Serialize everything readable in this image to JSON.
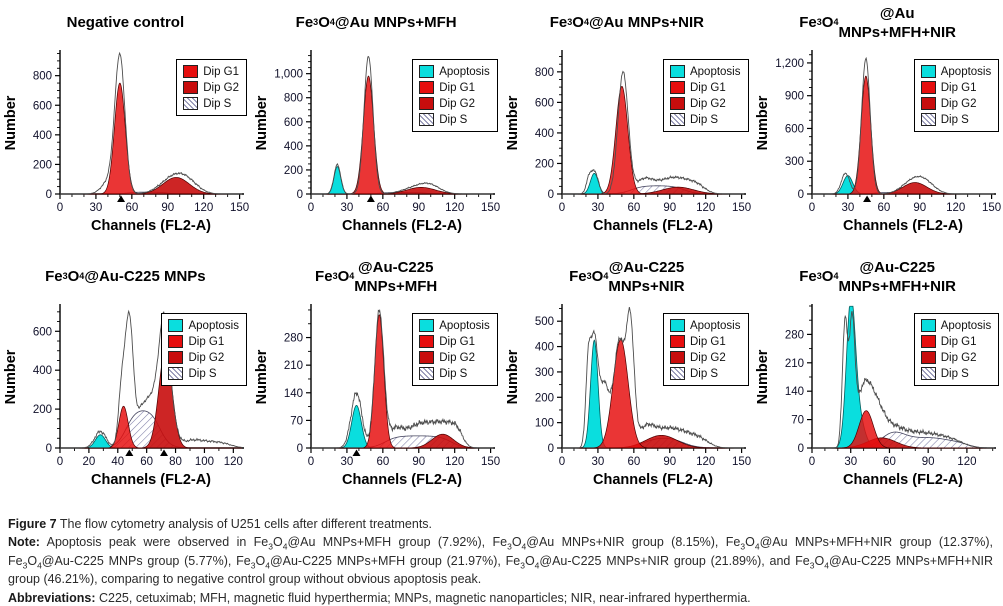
{
  "page": {
    "background": "#ffffff"
  },
  "colors": {
    "apoptosis": "#0adede",
    "dip_g1": "#e60e0e",
    "dip_g2": "#c80d0d",
    "s_hatch_line": "#8080a8",
    "raw_curve": "#4d4d4d",
    "axis": "#000000",
    "tick_text": "#10102a"
  },
  "legend_swatches": {
    "Apoptosis": "apoptosis",
    "Dip G1": "g1",
    "Dip G2": "g2",
    "Dip S": "s"
  },
  "caption": {
    "items": [
      {
        "label": "Figure 7",
        "text": " The flow cytometry analysis of U251 cells after different treatments."
      },
      {
        "label": "Note:",
        "text": " Apoptosis peak were observed in Fe~3~O~4~@Au MNPs+MFH group (7.92%), Fe~3~O~4~@Au MNPs+NIR group (8.15%), Fe~3~O~4~@Au MNPs+MFH+NIR group (12.37%), Fe~3~O~4~@Au-C225 MNPs group (5.77%), Fe~3~O~4~@Au-C225 MNPs+MFH group (21.97%), Fe~3~O~4~@Au-C225 MNPs+NIR group (21.89%), and Fe~3~O~4~@Au-C225 MNPs+MFH+NIR group (46.21%), comparing to negative control group without obvious apoptosis peak."
      },
      {
        "label": "Abbreviations:",
        "text": " C225, cetuximab; MFH, magnetic fluid hyperthermia; MNPs, magnetic nanoparticles; NIR, near-infrared hyperthermia."
      }
    ]
  },
  "chart_data": [
    {
      "type": "area",
      "name": "negative-control",
      "title_lines": [
        "Negative control"
      ],
      "xlabel": "Channels (FL2-A)",
      "ylabel": "Number",
      "xlim": [
        0,
        152
      ],
      "xticks": [
        0,
        30,
        60,
        90,
        120,
        150
      ],
      "x_minor_step": 10,
      "ylim": [
        0,
        960
      ],
      "yticks": [
        0,
        200,
        400,
        600,
        800
      ],
      "y_minor_div": 4,
      "legend": [
        "Dip G1",
        "Dip G2",
        "Dip S"
      ],
      "axis_markers": [
        51
      ],
      "series": {
        "raw": {
          "peaks": [
            [
              50,
              920,
              4.2
            ],
            [
              41,
              85,
              6
            ],
            [
              95,
              110,
              11
            ],
            [
              107,
              55,
              9
            ]
          ],
          "noise": 5
        },
        "g1": {
          "peaks": [
            [
              50,
              750,
              4.5
            ]
          ]
        },
        "g2": {
          "peaks": [
            [
              97,
              112,
              11
            ]
          ]
        },
        "s": {
          "plateau": [
            56,
            90,
            13,
            4
          ]
        }
      }
    },
    {
      "type": "area",
      "name": "fe3o4-au-mnps-mfh",
      "title_lines": [
        "Fe~3~O~4~@Au MNPs+MFH"
      ],
      "xlabel": "Channels (FL2-A)",
      "ylabel": "Number",
      "xlim": [
        0,
        152
      ],
      "xticks": [
        0,
        30,
        60,
        90,
        120,
        150
      ],
      "x_minor_step": 10,
      "ylim": [
        0,
        1180
      ],
      "yticks": [
        0,
        200,
        400,
        600,
        800,
        1000
      ],
      "y_minor_div": 4,
      "legend": [
        "Apoptosis",
        "Dip G1",
        "Dip G2",
        "Dip S"
      ],
      "axis_markers": [
        50
      ],
      "series": {
        "raw": {
          "peaks": [
            [
              22,
              245,
              2.8
            ],
            [
              48,
              1145,
              3.8
            ],
            [
              90,
              62,
              12
            ],
            [
              100,
              40,
              8
            ]
          ],
          "noise": 4
        },
        "apoptosis": {
          "peaks": [
            [
              22,
              228,
              2.8
            ]
          ]
        },
        "g1": {
          "peaks": [
            [
              48,
              980,
              4.3
            ]
          ]
        },
        "g2": {
          "peaks": [
            [
              92,
              55,
              12
            ]
          ]
        },
        "s": {
          "plateau": [
            56,
            97,
            12,
            4
          ]
        }
      }
    },
    {
      "type": "area",
      "name": "fe3o4-au-mnps-nir",
      "title_lines": [
        "Fe~3~O~4~@Au MNPs+NIR"
      ],
      "xlabel": "Channels (FL2-A)",
      "ylabel": "Number",
      "xlim": [
        0,
        152
      ],
      "xticks": [
        0,
        30,
        60,
        90,
        120,
        150
      ],
      "x_minor_step": 10,
      "ylim": [
        0,
        930
      ],
      "yticks": [
        0,
        200,
        400,
        600,
        800
      ],
      "y_minor_div": 4,
      "legend": [
        "Apoptosis",
        "Dip G1",
        "Dip G2",
        "Dip S"
      ],
      "axis_markers": [],
      "series": {
        "raw": {
          "peaks": [
            [
              23,
              118,
              2.5
            ],
            [
              28,
              128,
              2.6
            ],
            [
              51,
              795,
              4.3
            ],
            [
              68,
              80,
              7
            ],
            [
              85,
              70,
              11
            ],
            [
              100,
              70,
              10
            ],
            [
              113,
              40,
              7
            ]
          ],
          "noise": 6
        },
        "apoptosis": {
          "peaks": [
            [
              27,
              135,
              3.3
            ]
          ]
        },
        "g1": {
          "peaks": [
            [
              50,
              705,
              5
            ]
          ]
        },
        "g2": {
          "peaks": [
            [
              97,
              45,
              13
            ]
          ]
        },
        "s": {
          "plateau": [
            58,
            102,
            55,
            5
          ]
        }
      }
    },
    {
      "type": "area",
      "name": "fe3o4-au-mnps-mfh-nir",
      "title_lines": [
        "Fe~3~O~4~@Au",
        "MNPs+MFH+NIR"
      ],
      "xlabel": "Channels (FL2-A)",
      "ylabel": "Number",
      "xlim": [
        0,
        152
      ],
      "xticks": [
        0,
        30,
        60,
        90,
        120,
        150
      ],
      "x_minor_step": 10,
      "ylim": [
        0,
        1300
      ],
      "yticks": [
        0,
        300,
        600,
        900,
        1200
      ],
      "y_minor_div": 4,
      "legend": [
        "Apoptosis",
        "Dip G1",
        "Dip G2",
        "Dip S"
      ],
      "axis_markers": [
        46
      ],
      "series": {
        "raw": {
          "peaks": [
            [
              28,
              190,
              3.5
            ],
            [
              45,
              1240,
              3.6
            ],
            [
              84,
              112,
              9
            ],
            [
              95,
              85,
              8
            ]
          ],
          "noise": 5
        },
        "apoptosis": {
          "peaks": [
            [
              30,
              168,
              4
            ]
          ]
        },
        "g1": {
          "peaks": [
            [
              45,
              1080,
              4
            ]
          ]
        },
        "g2": {
          "peaks": [
            [
              86,
              105,
              10
            ]
          ]
        },
        "s": {
          "plateau": [
            51,
            78,
            14,
            4
          ]
        }
      }
    },
    {
      "type": "area",
      "name": "fe3o4-au-c225-mnps",
      "title_lines": [
        "Fe~3~O~4~@Au-C225 MNPs"
      ],
      "xlabel": "Channels (FL2-A)",
      "ylabel": "Number",
      "xlim": [
        0,
        126
      ],
      "xticks": [
        0,
        20,
        40,
        60,
        80,
        100,
        120
      ],
      "x_minor_step": 10,
      "ylim": [
        0,
        730
      ],
      "yticks": [
        0,
        200,
        400,
        600
      ],
      "y_minor_div": 4,
      "legend": [
        "Apoptosis",
        "Dip G1",
        "Dip G2",
        "Dip S"
      ],
      "axis_markers": [
        48,
        72
      ],
      "series": {
        "raw": {
          "peaks": [
            [
              28,
              85,
              4
            ],
            [
              43,
              320,
              2.4
            ],
            [
              48,
              620,
              2.6
            ],
            [
              57,
              200,
              5
            ],
            [
              65,
              180,
              4
            ],
            [
              72,
              600,
              3.6
            ],
            [
              77,
              120,
              4
            ],
            [
              90,
              30,
              6
            ],
            [
              100,
              25,
              7
            ],
            [
              112,
              22,
              7
            ]
          ],
          "noise": 6
        },
        "apoptosis": {
          "peaks": [
            [
              28,
              68,
              3.5
            ]
          ]
        },
        "g1": {
          "peaks": [
            [
              44,
              215,
              3.2
            ]
          ]
        },
        "g2": {
          "peaks": [
            [
              73,
              500,
              4.6
            ]
          ]
        },
        "s": {
          "plateau": [
            46,
            69,
            206,
            3.5
          ]
        }
      }
    },
    {
      "type": "area",
      "name": "fe3o4-au-c225-mnps-mfh",
      "title_lines": [
        "Fe~3~O~4~@Au-C225",
        "MNPs+MFH"
      ],
      "xlabel": "Channels (FL2-A)",
      "ylabel": "Number",
      "xlim": [
        0,
        152
      ],
      "xticks": [
        0,
        30,
        60,
        90,
        120,
        150
      ],
      "x_minor_step": 10,
      "ylim": [
        0,
        360
      ],
      "yticks": [
        0,
        70,
        140,
        210,
        280
      ],
      "y_minor_div": 2,
      "legend": [
        "Apoptosis",
        "Dip G1",
        "Dip G2",
        "Dip S"
      ],
      "axis_markers": [
        38
      ],
      "series": {
        "raw": {
          "peaks": [
            [
              38,
              140,
              4.5
            ],
            [
              57,
              345,
              3.8
            ],
            [
              70,
              40,
              6
            ],
            [
              85,
              42,
              9
            ],
            [
              100,
              48,
              9
            ],
            [
              113,
              42,
              7
            ],
            [
              122,
              35,
              5
            ]
          ],
          "noise": 5
        },
        "apoptosis": {
          "peaks": [
            [
              38,
              108,
              4
            ]
          ]
        },
        "g1": {
          "peaks": [
            [
              57,
              338,
              3.8
            ]
          ]
        },
        "g2": {
          "peaks": [
            [
              110,
              35,
              9
            ]
          ]
        },
        "s": {
          "plateau": [
            62,
            117,
            31,
            5
          ]
        }
      }
    },
    {
      "type": "area",
      "name": "fe3o4-au-c225-mnps-nir",
      "title_lines": [
        "Fe~3~O~4~@Au-C225",
        "MNPs+NIR"
      ],
      "xlabel": "Channels (FL2-A)",
      "ylabel": "Number",
      "xlim": [
        0,
        152
      ],
      "xticks": [
        0,
        30,
        60,
        90,
        120,
        150
      ],
      "x_minor_step": 10,
      "ylim": [
        0,
        560
      ],
      "yticks": [
        0,
        100,
        200,
        300,
        400,
        500
      ],
      "y_minor_div": 2,
      "legend": [
        "Apoptosis",
        "Dip G1",
        "Dip G2",
        "Dip S"
      ],
      "axis_markers": [],
      "series": {
        "raw": {
          "peaks": [
            [
              22,
              320,
              2.2
            ],
            [
              27,
              380,
              2.8
            ],
            [
              35,
              250,
              4.5
            ],
            [
              48,
              420,
              4.5
            ],
            [
              57,
              470,
              3.2
            ],
            [
              70,
              75,
              7
            ],
            [
              85,
              60,
              9
            ],
            [
              100,
              50,
              9
            ],
            [
              115,
              32,
              8
            ]
          ],
          "noise": 6
        },
        "apoptosis": {
          "peaks": [
            [
              27,
              425,
              3.1
            ]
          ]
        },
        "g1": {
          "peaks": [
            [
              49,
              428,
              6.3
            ]
          ]
        },
        "g2": {
          "peaks": [
            [
              83,
              50,
              13
            ]
          ]
        },
        "s": {
          "plateau": [
            69,
            101,
            44,
            6
          ]
        }
      }
    },
    {
      "type": "area",
      "name": "fe3o4-au-c225-mnps-mfh-nir",
      "title_lines": [
        "Fe~3~O~4~@Au-C225",
        "MNPs+MFH+NIR"
      ],
      "xlabel": "Channels (FL2-A)",
      "ylabel": "Number",
      "xlim": [
        0,
        141
      ],
      "xticks": [
        0,
        30,
        60,
        90,
        120
      ],
      "x_minor_step": 10,
      "ylim": [
        0,
        350
      ],
      "yticks": [
        0,
        70,
        140,
        210,
        280
      ],
      "y_minor_div": 2,
      "legend": [
        "Apoptosis",
        "Dip G1",
        "Dip G2",
        "Dip S"
      ],
      "axis_markers": [],
      "series": {
        "raw": {
          "peaks": [
            [
              25.5,
              300,
              2
            ],
            [
              31,
              280,
              2.2
            ],
            [
              40,
              140,
              6
            ],
            [
              50,
              80,
              6
            ],
            [
              62,
              42,
              8
            ],
            [
              78,
              30,
              10
            ],
            [
              95,
              24,
              10
            ],
            [
              110,
              14,
              9
            ]
          ],
          "noise": 5
        },
        "apoptosis": {
          "peaks": [
            [
              30,
              322,
              3.4
            ],
            [
              35,
              85,
              5
            ]
          ]
        },
        "g1": {
          "peaks": [
            [
              42,
              92,
              5.5
            ]
          ]
        },
        "g2": {
          "peaks": [
            [
              54,
              25,
              11
            ]
          ]
        },
        "s": {
          "peaks": [
            [
              62,
              28,
              9
            ],
            [
              80,
              21,
              15
            ],
            [
              100,
              13,
              11
            ],
            [
              115,
              7,
              8
            ]
          ]
        }
      }
    }
  ]
}
